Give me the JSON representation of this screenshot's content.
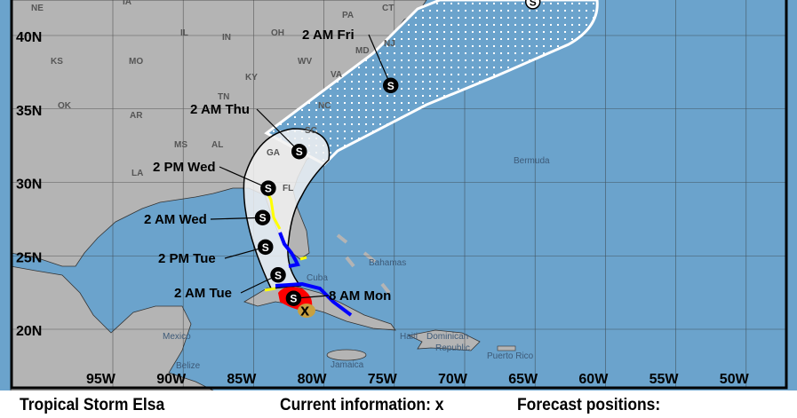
{
  "map": {
    "colors": {
      "ocean": "#6ba3cc",
      "land": "#b4b4b4",
      "cone": "#f2f2f2",
      "warning_ts": "#0000ff",
      "watch_ts": "#ffff00",
      "warning_hu": "#ff0000",
      "watch_hu": "#ffc0cb",
      "current_area": "#c8a040"
    },
    "lat_ticks": [
      "40N",
      "35N",
      "30N",
      "25N",
      "20N"
    ],
    "lon_ticks": [
      "95W",
      "90W",
      "85W",
      "80W",
      "75W",
      "70W",
      "65W",
      "60W",
      "55W",
      "50W"
    ],
    "state_labels": [
      "NE",
      "IA",
      "IL",
      "IN",
      "OH",
      "PA",
      "KS",
      "MO",
      "KY",
      "WV",
      "VA",
      "OK",
      "AR",
      "TN",
      "NC",
      "SC",
      "MS",
      "AL",
      "GA",
      "LA",
      "FL",
      "CT",
      "NJ",
      "MD"
    ],
    "place_labels": [
      "Bermuda",
      "Bahamas",
      "Mexico",
      "Belize",
      "Jamaica",
      "Haiti",
      "Dominican",
      "Republic",
      "Puerto Rico",
      "Cuba"
    ],
    "forecast_points": [
      {
        "label": "8 AM Mon",
        "lat": 22.1,
        "lon": -81.4,
        "type": "S"
      },
      {
        "label": "2 AM Tue",
        "lat": 23.7,
        "lon": -82.5,
        "type": "S"
      },
      {
        "label": "2 PM Tue",
        "lat": 25.6,
        "lon": -83.4,
        "type": "S"
      },
      {
        "label": "2 AM Wed",
        "lat": 27.6,
        "lon": -83.6,
        "type": "S"
      },
      {
        "label": "2 PM Wed",
        "lat": 29.6,
        "lon": -83.2,
        "type": "S"
      },
      {
        "label": "2 AM Thu",
        "lat": 32.1,
        "lon": -81.0,
        "type": "S"
      },
      {
        "label": "2 AM Fri",
        "lat": 36.6,
        "lon": -74.5,
        "type": "S"
      },
      {
        "label": "",
        "lat": 42.3,
        "lon": -64.4,
        "type": "S"
      }
    ],
    "current_position": {
      "lat": 21.3,
      "lon": -80.6,
      "marker": "x"
    }
  },
  "legend": {
    "storm_name": "Tropical Storm Elsa",
    "current_info": "Current information: x",
    "forecast_positions": "Forecast positions:"
  }
}
